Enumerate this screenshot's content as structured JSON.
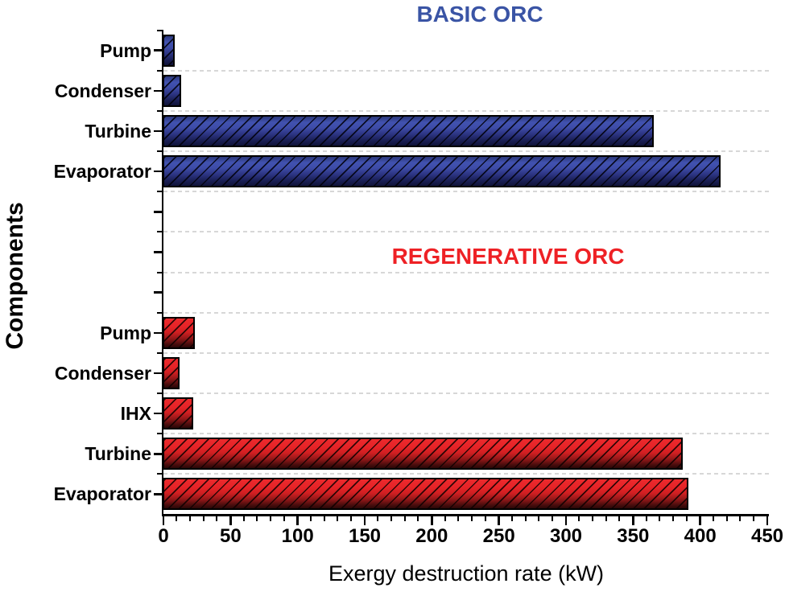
{
  "page": {
    "background": "#ffffff"
  },
  "chart_data": {
    "type": "bar",
    "orientation": "horizontal",
    "xlabel": "Exergy destruction rate (kW)",
    "ylabel": "Components",
    "xlim": [
      0,
      450
    ],
    "xticks": [
      0,
      50,
      100,
      150,
      200,
      250,
      300,
      350,
      400,
      450
    ],
    "minor_xtick_step": 10,
    "grid": "dashed light-gray horizontal lines at category boundaries",
    "legend_position": "none",
    "hatch": "black diagonal forward-slash hatching on all bars",
    "gap_slots_between_groups": 3,
    "groups": [
      {
        "label": "BASIC ORC",
        "label_color": "#3a54a5",
        "bar_color": "#3e4ca8",
        "categories": [
          "Pump",
          "Condenser",
          "Turbine",
          "Evaporator"
        ],
        "values": [
          7,
          12,
          364,
          414
        ]
      },
      {
        "label": "REGENERATIVE ORC",
        "label_color": "#ee2125",
        "bar_color": "#e62327",
        "categories": [
          "Pump",
          "Condenser",
          "IHX",
          "Turbine",
          "Evaporator"
        ],
        "values": [
          22,
          11,
          21,
          386,
          390
        ]
      }
    ]
  }
}
